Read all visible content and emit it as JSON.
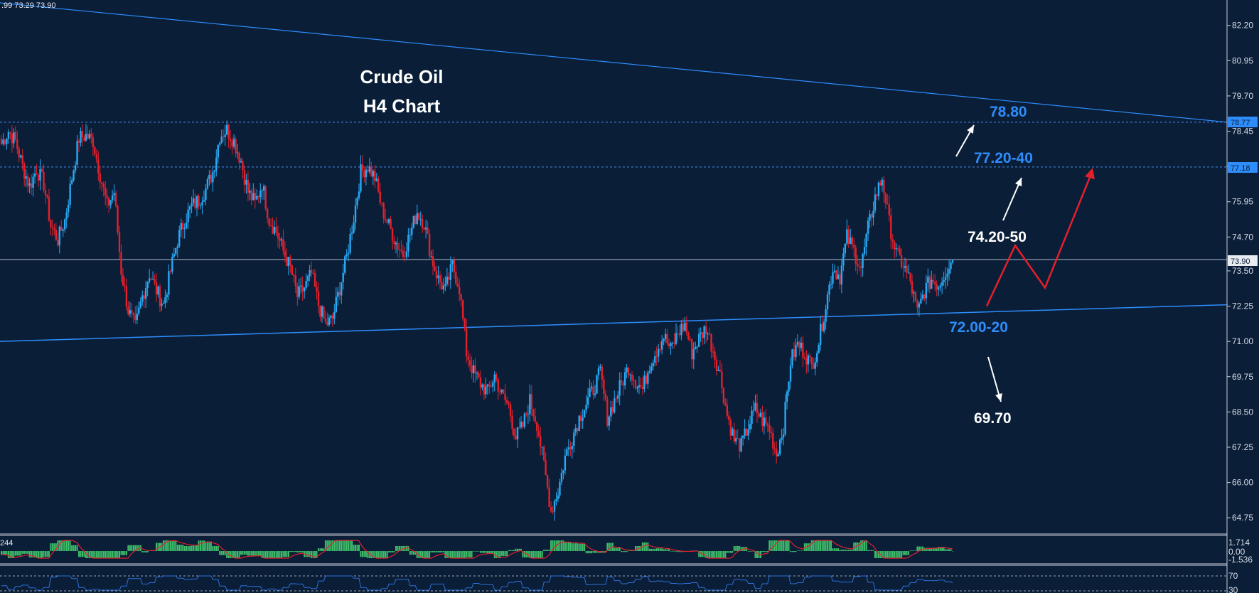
{
  "header": {
    "ohlc_text": ".99 73.29 73.90"
  },
  "title": {
    "line1": "Crude Oil",
    "line2": "H4  Chart"
  },
  "annotations": {
    "target_high": "78.80",
    "resistance": "77.20-40",
    "mid_level": "74.20-50",
    "support": "72.00-20",
    "target_low": "69.70"
  },
  "price_tags": {
    "current": "73.90",
    "level_upper": "78.77",
    "level_mid": "77.18"
  },
  "colors": {
    "background": "#0a1e38",
    "bull": "#29a9f2",
    "bear": "#e4202b",
    "trendline": "#2e8dfb",
    "grid": "#9aa3b0",
    "histogram": "#3fbf6a",
    "signal": "#e4202b",
    "osc_line": "#2e6fd8"
  },
  "macd_panel": {
    "label": "244",
    "ticks": [
      "1.714",
      "0.00",
      "-1.536"
    ]
  },
  "osc_panel": {
    "ticks": [
      "70",
      "30"
    ]
  },
  "chart_data": {
    "type": "candlestick",
    "instrument": "Crude Oil",
    "timeframe": "H4",
    "ylim": [
      64.2,
      83.1
    ],
    "y_ticks": [
      "82.20",
      "80.95",
      "79.70",
      "78.45",
      "77.20",
      "75.95",
      "74.70",
      "73.50",
      "72.25",
      "71.00",
      "69.75",
      "68.50",
      "67.25",
      "66.00",
      "64.75"
    ],
    "close_path": [
      78.0,
      78.45,
      78.1,
      77.2,
      76.5,
      77.1,
      76.6,
      75.1,
      74.6,
      75.3,
      76.8,
      78.2,
      78.3,
      78.1,
      76.9,
      75.8,
      76.3,
      73.5,
      72.1,
      71.5,
      72.6,
      73.4,
      72.8,
      72.3,
      73.5,
      74.6,
      75.3,
      75.8,
      76.0,
      76.4,
      77.0,
      78.3,
      78.5,
      78.1,
      77.4,
      76.3,
      75.9,
      76.6,
      75.3,
      74.9,
      74.2,
      73.6,
      72.6,
      72.9,
      73.4,
      72.3,
      71.6,
      71.8,
      72.9,
      74.0,
      75.4,
      77.0,
      77.2,
      76.8,
      75.7,
      75.1,
      74.5,
      74.1,
      74.8,
      75.6,
      75.2,
      74.0,
      73.2,
      72.8,
      73.7,
      72.9,
      70.6,
      69.9,
      69.5,
      69.2,
      69.8,
      69.1,
      68.7,
      67.6,
      68.0,
      68.9,
      68.1,
      66.6,
      65.0,
      65.7,
      66.9,
      67.6,
      68.3,
      68.8,
      69.3,
      69.9,
      68.3,
      68.9,
      69.5,
      70.1,
      69.6,
      69.3,
      70.2,
      70.7,
      71.2,
      70.7,
      71.3,
      71.6,
      70.6,
      71.1,
      71.5,
      70.7,
      69.8,
      68.4,
      67.5,
      67.3,
      68.0,
      68.6,
      68.2,
      67.9,
      67.0,
      68.0,
      70.3,
      70.9,
      70.6,
      70.1,
      71.0,
      72.3,
      73.6,
      73.3,
      74.7,
      74.2,
      73.6,
      75.0,
      76.1,
      76.8,
      75.2,
      74.1,
      73.7,
      73.1,
      72.0,
      72.8,
      73.2,
      73.0,
      73.5,
      73.9
    ],
    "trendlines": [
      {
        "name": "upper",
        "y_start": 83.0,
        "y_end": 78.77
      },
      {
        "name": "lower",
        "y_start": 71.0,
        "y_end": 72.3
      }
    ],
    "levels": [
      78.77,
      77.18,
      73.9
    ],
    "projection_path": [
      72.25,
      74.4,
      72.9,
      77.0
    ]
  }
}
